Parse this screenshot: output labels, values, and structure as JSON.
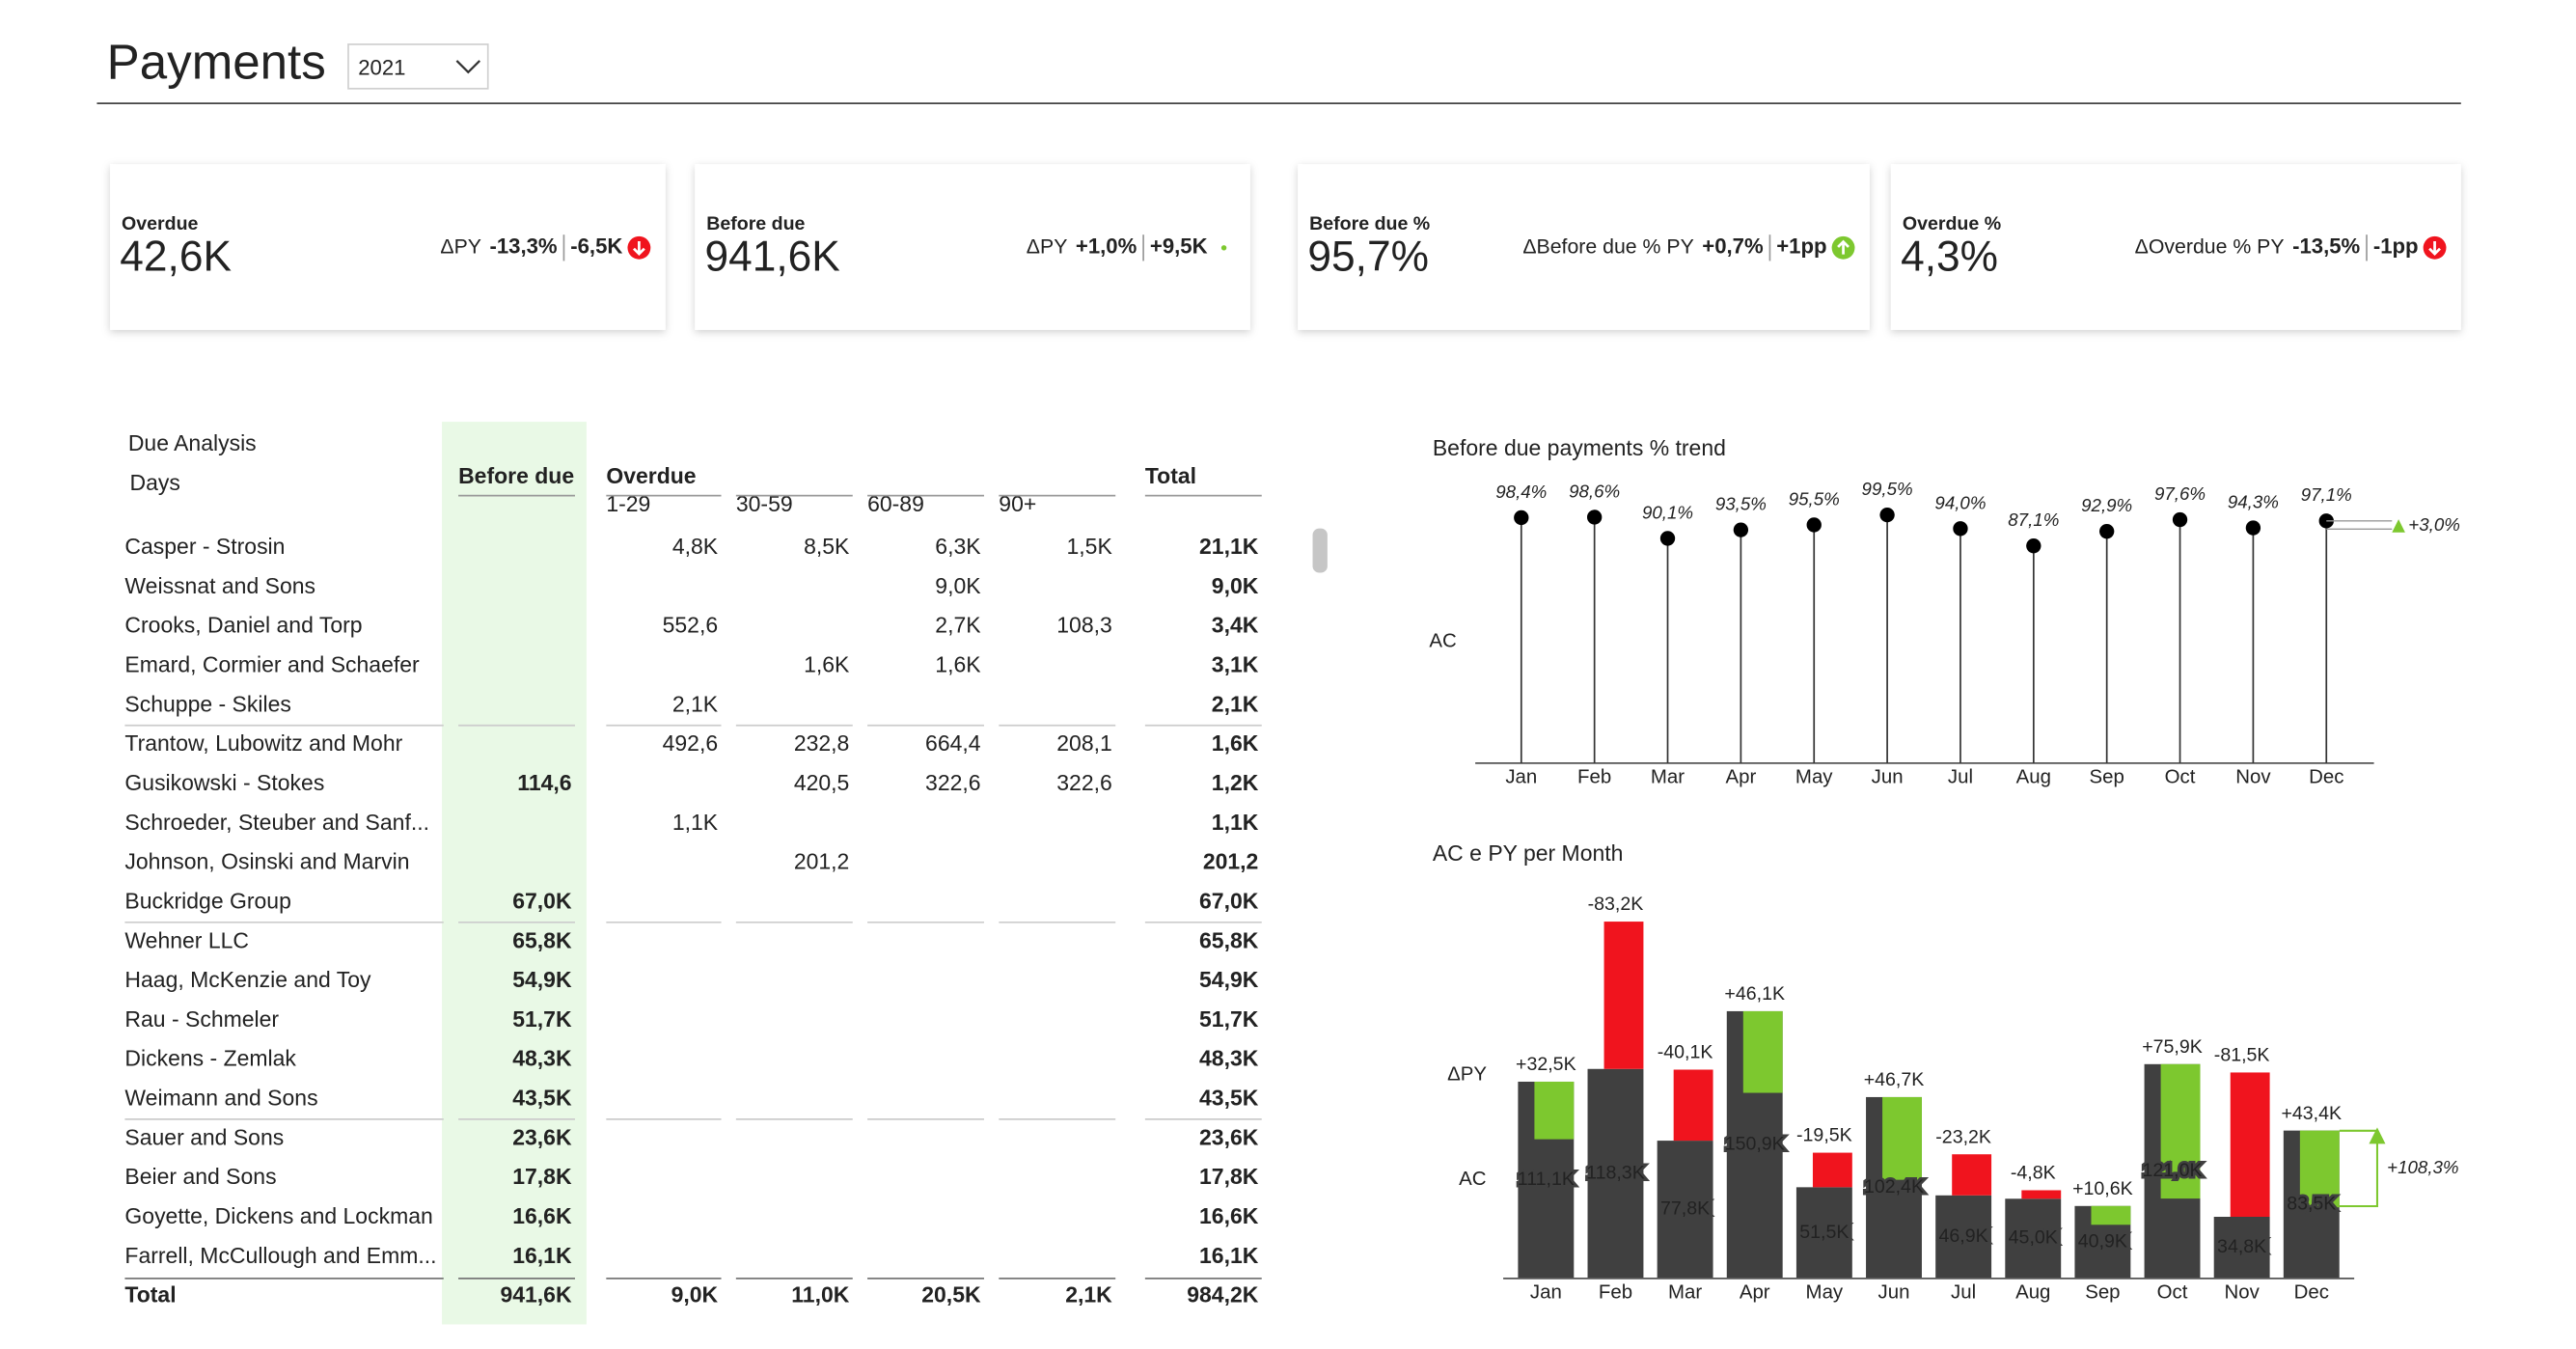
{
  "header": {
    "title": "Payments",
    "year": "2021"
  },
  "kpis": [
    {
      "label": "Overdue",
      "value": "42,6K",
      "delta_label": "ΔPY",
      "delta_pct": "-13,3%",
      "delta_abs": "-6,5K",
      "trend": "down",
      "color": "#f0141e"
    },
    {
      "label": "Before due",
      "value": "941,6K",
      "delta_label": "ΔPY",
      "delta_pct": "+1,0%",
      "delta_abs": "+9,5K",
      "trend": "flat",
      "color": "#7dc82f"
    },
    {
      "label": "Before due %",
      "value": "95,7%",
      "delta_label": "ΔBefore due % PY",
      "delta_pct": "+0,7%",
      "delta_abs": "+1pp",
      "trend": "up",
      "color": "#7dc82f"
    },
    {
      "label": "Overdue %",
      "value": "4,3%",
      "delta_label": "ΔOverdue % PY",
      "delta_pct": "-13,5%",
      "delta_abs": "-1pp",
      "trend": "down",
      "color": "#f0141e"
    }
  ],
  "table": {
    "title": "Due Analysis",
    "row_header": "Days",
    "columns": [
      "Before due",
      "Overdue",
      "Total"
    ],
    "subcolumns": [
      "1-29",
      "30-59",
      "60-89",
      "90+"
    ],
    "rows": [
      [
        "Casper - Strosin",
        null,
        "4,8K",
        "8,5K",
        "6,3K",
        "1,5K",
        "21,1K"
      ],
      [
        "Weissnat and Sons",
        null,
        null,
        null,
        "9,0K",
        null,
        "9,0K"
      ],
      [
        "Crooks, Daniel and Torp",
        null,
        "552,6",
        null,
        "2,7K",
        "108,3",
        "3,4K"
      ],
      [
        "Emard, Cormier and Schaefer",
        null,
        null,
        "1,6K",
        "1,6K",
        null,
        "3,1K"
      ],
      [
        "Schuppe - Skiles",
        null,
        "2,1K",
        null,
        null,
        null,
        "2,1K"
      ],
      [
        "Trantow, Lubowitz and Mohr",
        null,
        "492,6",
        "232,8",
        "664,4",
        "208,1",
        "1,6K"
      ],
      [
        "Gusikowski - Stokes",
        "114,6",
        null,
        "420,5",
        "322,6",
        "322,6",
        "1,2K"
      ],
      [
        "Schroeder, Steuber and Sanf...",
        null,
        "1,1K",
        null,
        null,
        null,
        "1,1K"
      ],
      [
        "Johnson, Osinski and Marvin",
        null,
        null,
        "201,2",
        null,
        null,
        "201,2"
      ],
      [
        "Buckridge Group",
        "67,0K",
        null,
        null,
        null,
        null,
        "67,0K"
      ],
      [
        "Wehner LLC",
        "65,8K",
        null,
        null,
        null,
        null,
        "65,8K"
      ],
      [
        "Haag, McKenzie and Toy",
        "54,9K",
        null,
        null,
        null,
        null,
        "54,9K"
      ],
      [
        "Rau - Schmeler",
        "51,7K",
        null,
        null,
        null,
        null,
        "51,7K"
      ],
      [
        "Dickens - Zemlak",
        "48,3K",
        null,
        null,
        null,
        null,
        "48,3K"
      ],
      [
        "Weimann and Sons",
        "43,5K",
        null,
        null,
        null,
        null,
        "43,5K"
      ],
      [
        "Sauer and Sons",
        "23,6K",
        null,
        null,
        null,
        null,
        "23,6K"
      ],
      [
        "Beier and Sons",
        "17,8K",
        null,
        null,
        null,
        null,
        "17,8K"
      ],
      [
        "Goyette, Dickens and Lockman",
        "16,6K",
        null,
        null,
        null,
        null,
        "16,6K"
      ],
      [
        "Farrell, McCullough and Emm...",
        "16,1K",
        null,
        null,
        null,
        null,
        "16,1K"
      ]
    ],
    "total": [
      "Total",
      "941,6K",
      "9,0K",
      "11,0K",
      "20,5K",
      "2,1K",
      "984,2K"
    ]
  },
  "chart_data": [
    {
      "type": "lollipop",
      "title": "Before due payments % trend",
      "categories": [
        "Jan",
        "Feb",
        "Mar",
        "Apr",
        "May",
        "Jun",
        "Jul",
        "Aug",
        "Sep",
        "Oct",
        "Nov",
        "Dec"
      ],
      "series": [
        {
          "name": "AC",
          "color": "#000000",
          "values": [
            98.4,
            98.6,
            90.1,
            93.5,
            95.5,
            99.5,
            94.0,
            87.1,
            92.9,
            97.6,
            94.3,
            97.1
          ],
          "value_labels": [
            "98,4%",
            "98,6%",
            "90,1%",
            "93,5%",
            "95,5%",
            "99,5%",
            "94,0%",
            "87,1%",
            "92,9%",
            "97,6%",
            "94,3%",
            "97,1%"
          ]
        }
      ],
      "ylim": [
        0,
        100
      ],
      "annotation": "+3,0%",
      "annotation_color": "#7dc82f"
    },
    {
      "type": "variance_bar",
      "title": "AC e PY per Month",
      "categories": [
        "Jan",
        "Feb",
        "Mar",
        "Apr",
        "May",
        "Jun",
        "Jul",
        "Aug",
        "Sep",
        "Oct",
        "Nov",
        "Dec"
      ],
      "series": [
        {
          "name": "AC",
          "color": "#404040",
          "values": [
            111.1,
            118.3,
            77.8,
            150.9,
            51.5,
            102.4,
            46.9,
            45.0,
            40.9,
            121.0,
            34.8,
            83.5
          ],
          "value_labels": [
            "111,1K",
            "118,3K",
            "77,8K",
            "150,9K",
            "51,5K",
            "102,4K",
            "46,9K",
            "45,0K",
            "40,9K",
            "121,0K",
            "34,8K",
            "83,5K"
          ]
        },
        {
          "name": "ΔPY",
          "colors": {
            "positive": "#7dc82f",
            "negative": "#f0141e"
          },
          "values": [
            32.5,
            -83.2,
            -40.1,
            46.1,
            -19.5,
            46.7,
            -23.2,
            -4.8,
            10.6,
            75.9,
            -81.5,
            43.4
          ],
          "value_labels": [
            "+32,5K",
            "-83,2K",
            "-40,1K",
            "+46,1K",
            "-19,5K",
            "+46,7K",
            "-23,2K",
            "-4,8K",
            "+10,6K",
            "+75,9K",
            "-81,5K",
            "+43,4K"
          ]
        }
      ],
      "ylim": [
        0,
        215
      ],
      "annotation": "+108,3%",
      "annotation_color": "#7dc82f"
    }
  ]
}
